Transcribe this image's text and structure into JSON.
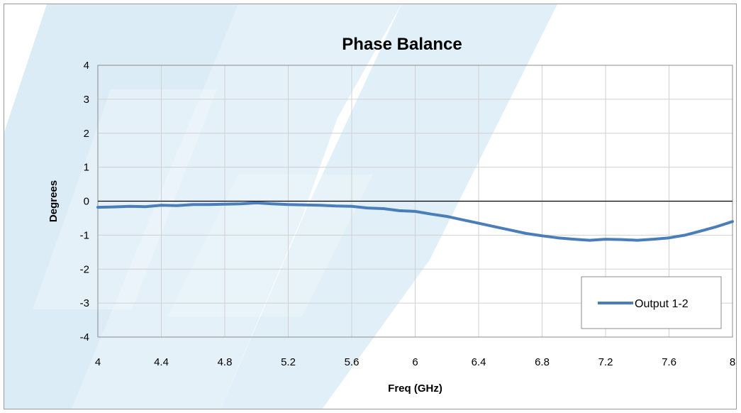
{
  "chart_data": {
    "type": "line",
    "title": "Phase Balance",
    "xlabel": "Freq (GHz)",
    "ylabel": "Degrees",
    "xlim": [
      4,
      8
    ],
    "ylim": [
      -4,
      4
    ],
    "x_ticks": [
      "4",
      "4.4",
      "4.8",
      "5.2",
      "5.6",
      "6",
      "6.4",
      "6.8",
      "7.2",
      "7.6",
      "8"
    ],
    "y_ticks": [
      "4",
      "3",
      "2",
      "1",
      "0",
      "-1",
      "-2",
      "-3",
      "-4"
    ],
    "grid": true,
    "legend_position": "bottom-right",
    "series": [
      {
        "name": "Output 1-2",
        "color": "#4a7ebb",
        "x": [
          4.0,
          4.1,
          4.2,
          4.3,
          4.4,
          4.5,
          4.6,
          4.7,
          4.8,
          4.9,
          5.0,
          5.1,
          5.2,
          5.3,
          5.4,
          5.5,
          5.6,
          5.7,
          5.8,
          5.9,
          6.0,
          6.1,
          6.2,
          6.3,
          6.4,
          6.5,
          6.6,
          6.7,
          6.8,
          6.9,
          7.0,
          7.1,
          7.2,
          7.3,
          7.4,
          7.5,
          7.6,
          7.7,
          7.8,
          7.9,
          8.0
        ],
        "y": [
          -0.18,
          -0.17,
          -0.15,
          -0.16,
          -0.12,
          -0.13,
          -0.1,
          -0.1,
          -0.09,
          -0.08,
          -0.05,
          -0.08,
          -0.1,
          -0.11,
          -0.12,
          -0.14,
          -0.15,
          -0.2,
          -0.22,
          -0.28,
          -0.3,
          -0.38,
          -0.45,
          -0.55,
          -0.65,
          -0.75,
          -0.85,
          -0.95,
          -1.02,
          -1.08,
          -1.12,
          -1.15,
          -1.12,
          -1.13,
          -1.15,
          -1.12,
          -1.08,
          -1.0,
          -0.88,
          -0.75,
          -0.6
        ]
      }
    ]
  }
}
